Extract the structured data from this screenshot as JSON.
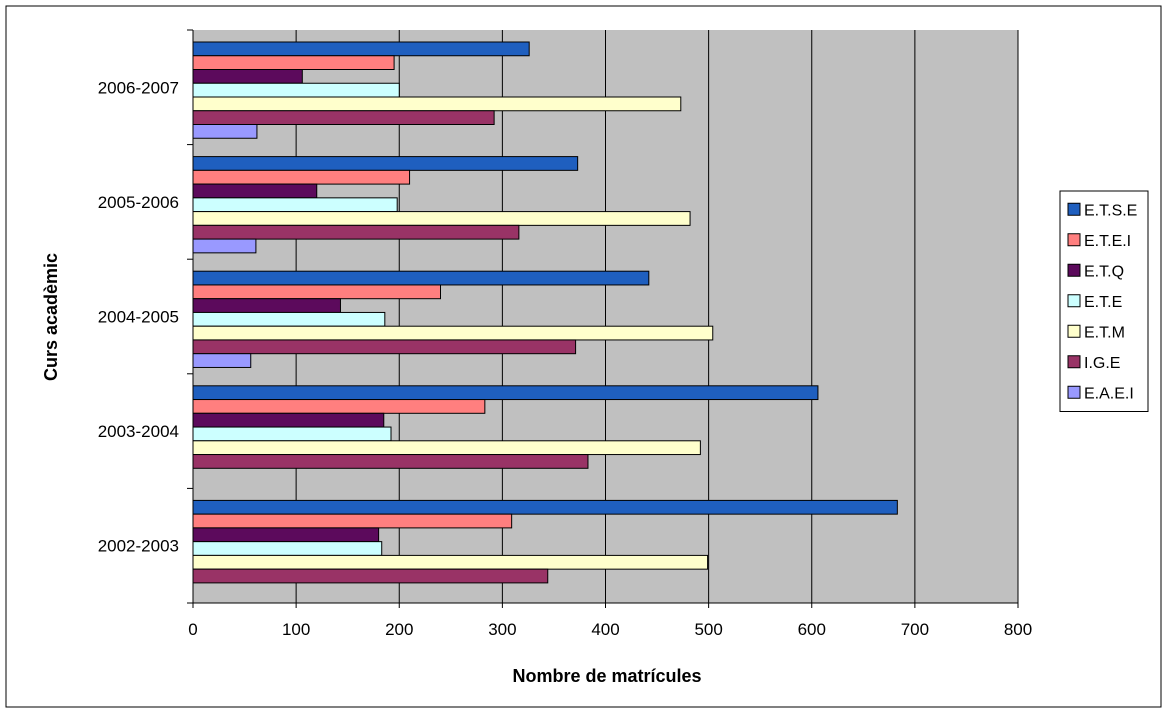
{
  "chart_data": {
    "type": "bar",
    "orientation": "horizontal",
    "categories": [
      "2002-2003",
      "2003-2004",
      "2004-2005",
      "2005-2006",
      "2006-2007"
    ],
    "series": [
      {
        "name": "E.T.S.E",
        "color": "#1F5FBF",
        "values": [
          683,
          606,
          442,
          373,
          326
        ]
      },
      {
        "name": "E.T.E.I",
        "color": "#FF7F7F",
        "values": [
          309,
          283,
          240,
          210,
          195
        ]
      },
      {
        "name": "E.T.Q",
        "color": "#5C0A5C",
        "values": [
          180,
          185,
          143,
          120,
          106
        ]
      },
      {
        "name": "E.T.E",
        "color": "#CCFFFF",
        "values": [
          183,
          192,
          186,
          198,
          200
        ]
      },
      {
        "name": "E.T.M",
        "color": "#FFFFCC",
        "values": [
          499,
          492,
          504,
          482,
          473
        ]
      },
      {
        "name": "I.G.E",
        "color": "#993366",
        "values": [
          344,
          383,
          371,
          316,
          292
        ]
      },
      {
        "name": "E.A.E.I",
        "color": "#9999FF",
        "values": [
          null,
          null,
          56,
          61,
          62
        ]
      }
    ],
    "xlabel": "Nombre de matrícules",
    "ylabel": "Curs acadèmic",
    "xlim": [
      0,
      800
    ],
    "xticks": [
      "0",
      "100",
      "200",
      "300",
      "400",
      "500",
      "600",
      "700",
      "800"
    ],
    "grid": true,
    "legend_position": "right",
    "plot_background": "#C0C0C0"
  }
}
